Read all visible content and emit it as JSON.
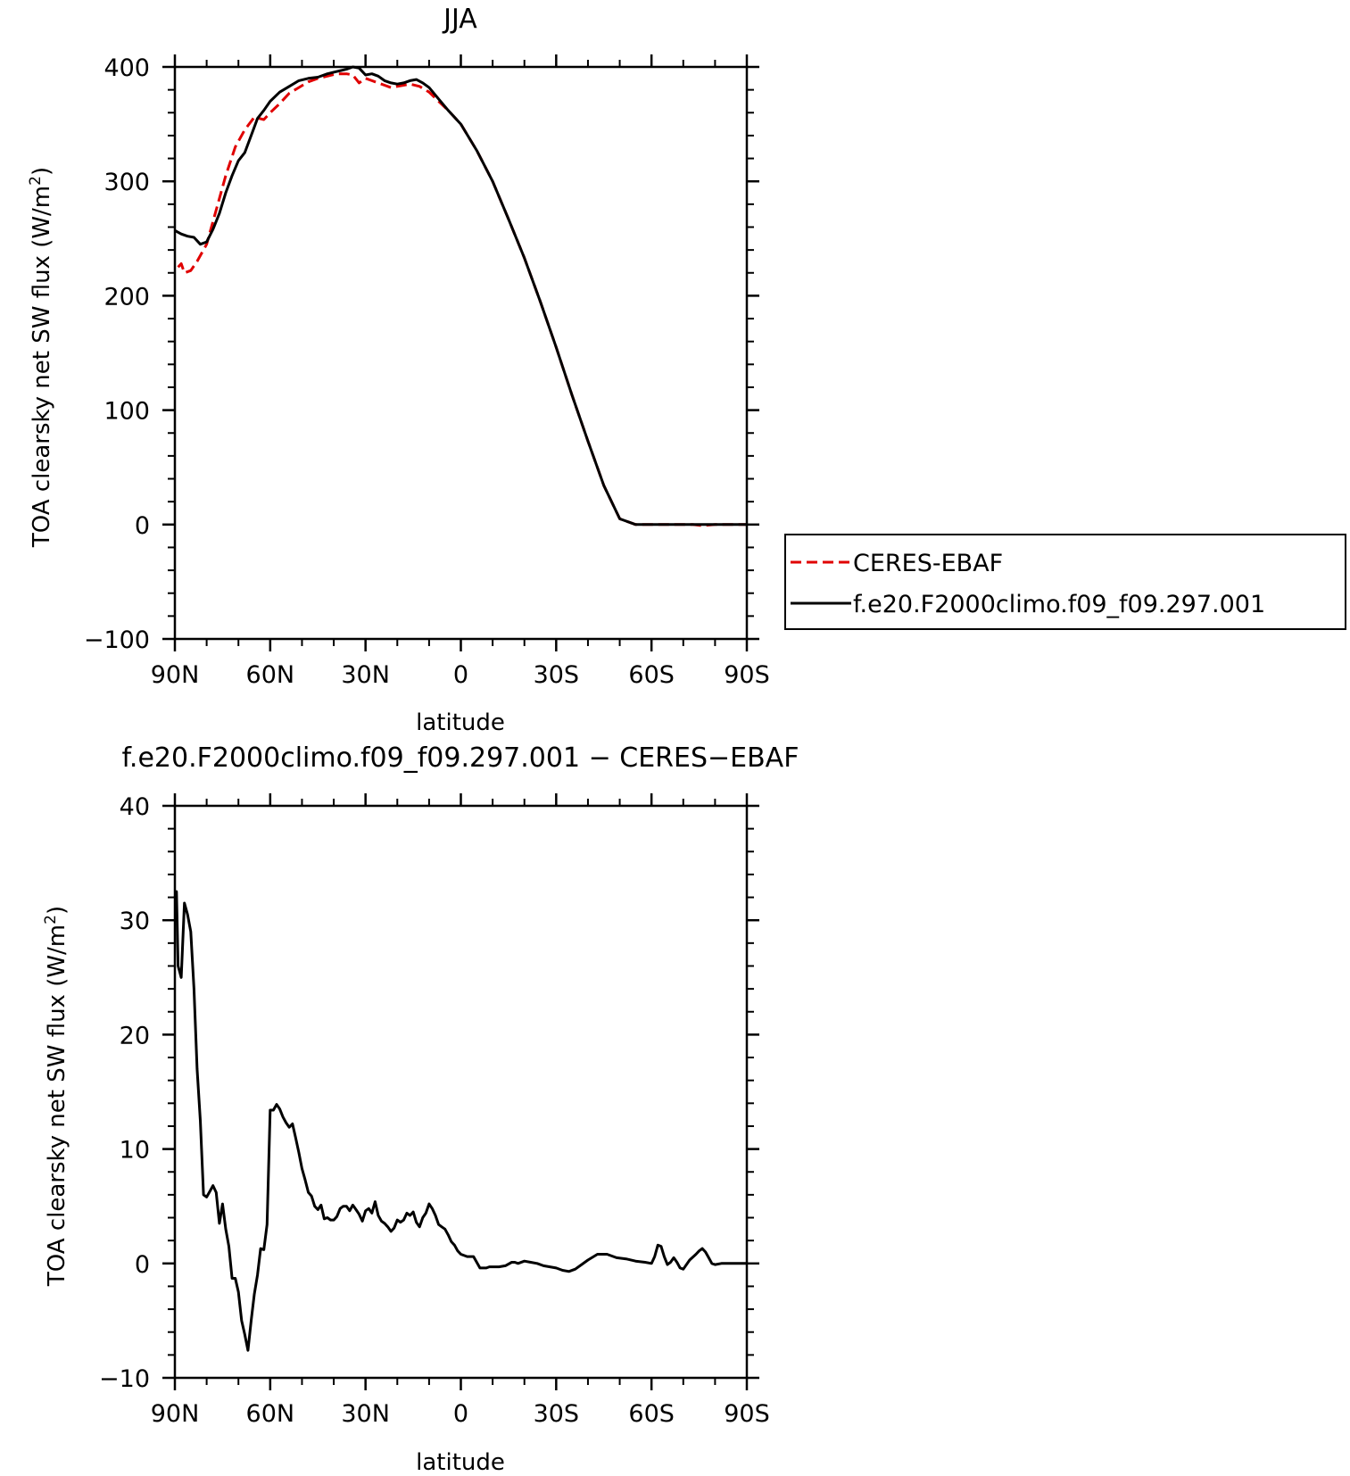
{
  "chart_data": [
    {
      "type": "line",
      "title": "JJA",
      "xlabel": "latitude",
      "ylabel": "TOA clearsky net SW flux (W/m²)",
      "ylabel_main": "TOA clearsky net SW flux (W/m",
      "ylabel_sup": "2",
      "ylabel_end": ")",
      "xlim": [
        90,
        -90
      ],
      "ylim": [
        -100,
        400
      ],
      "xticks": [
        90,
        60,
        30,
        0,
        -30,
        -60,
        -90
      ],
      "xtick_labels": [
        "90N",
        "60N",
        "30N",
        "0",
        "30S",
        "60S",
        "90S"
      ],
      "yticks": [
        -100,
        0,
        100,
        200,
        300,
        400
      ],
      "ytick_labels": [
        "−100",
        "0",
        "100",
        "200",
        "300",
        "400"
      ],
      "legend_position": "right",
      "series": [
        {
          "name": "CERES-EBAF",
          "color": "#e00000",
          "style": "dashed",
          "x": [
            89,
            88,
            87,
            85,
            83,
            80,
            77,
            74,
            71,
            68,
            65,
            62,
            60,
            57,
            54,
            51,
            48,
            45,
            42,
            39,
            36,
            34,
            32,
            30,
            28,
            26,
            24,
            22,
            20,
            18,
            16,
            13,
            10,
            7,
            4,
            0,
            -5,
            -10,
            -15,
            -20,
            -25,
            -30,
            -35,
            -40,
            -45,
            -50,
            -55,
            -60,
            -62,
            -64,
            -66,
            -68,
            -70,
            -73,
            -76,
            -80,
            -85,
            -90
          ],
          "y": [
            225,
            228,
            220,
            222,
            230,
            245,
            275,
            305,
            330,
            345,
            356,
            354,
            360,
            368,
            377,
            382,
            387,
            390,
            392,
            394,
            394,
            393,
            386,
            390,
            388,
            386,
            384,
            382,
            383,
            384,
            385,
            383,
            378,
            370,
            362,
            350,
            327,
            300,
            267,
            233,
            195,
            155,
            113,
            73,
            34,
            5,
            0,
            0,
            0,
            0,
            0,
            0,
            0,
            0,
            -1,
            0,
            0,
            0
          ]
        },
        {
          "name": "f.e20.F2000climo.f09_f09.297.001",
          "color": "#000000",
          "style": "solid",
          "x": [
            90,
            88,
            86,
            84,
            82,
            80,
            78,
            76,
            74,
            72,
            70,
            68,
            66,
            64,
            62,
            60,
            57,
            54,
            51,
            48,
            45,
            42,
            39,
            36,
            34,
            32,
            30,
            28,
            26,
            24,
            22,
            20,
            18,
            16,
            14,
            12,
            10,
            7,
            4,
            0,
            -5,
            -10,
            -15,
            -20,
            -25,
            -30,
            -35,
            -40,
            -45,
            -50,
            -55,
            -60,
            -62,
            -64,
            -66,
            -68,
            -70,
            -73,
            -76,
            -80,
            -85,
            -90
          ],
          "y": [
            257,
            254,
            252,
            251,
            245,
            247,
            258,
            272,
            290,
            305,
            318,
            325,
            340,
            355,
            362,
            370,
            378,
            383,
            388,
            390,
            391,
            394,
            396,
            398,
            400,
            399,
            393,
            394,
            392,
            388,
            386,
            385,
            386,
            388,
            389,
            386,
            382,
            372,
            362,
            350,
            327,
            300,
            267,
            233,
            195,
            155,
            113,
            73,
            34,
            5,
            0,
            0,
            0,
            0,
            0,
            0,
            0,
            0,
            0,
            0,
            0,
            0
          ]
        }
      ]
    },
    {
      "type": "line",
      "title": "f.e20.F2000climo.f09_f09.297.001 − CERES−EBAF",
      "xlabel": "latitude",
      "ylabel": "TOA clearsky net SW flux (W/m²)",
      "ylabel_main": "TOA clearsky net SW flux (W/m",
      "ylabel_sup": "2",
      "ylabel_end": ")",
      "xlim": [
        90,
        -90
      ],
      "ylim": [
        -10,
        40
      ],
      "xticks": [
        90,
        60,
        30,
        0,
        -30,
        -60,
        -90
      ],
      "xtick_labels": [
        "90N",
        "60N",
        "30N",
        "0",
        "30S",
        "60S",
        "90S"
      ],
      "yticks": [
        -10,
        0,
        10,
        20,
        30,
        40
      ],
      "ytick_labels": [
        "−10",
        "0",
        "10",
        "20",
        "30",
        "40"
      ],
      "series": [
        {
          "color": "#000000",
          "style": "solid",
          "x": [
            90,
            89.5,
            89,
            88,
            87,
            86,
            85,
            84,
            83,
            82,
            81,
            80,
            79,
            78,
            77,
            76,
            75,
            74,
            73,
            72,
            71,
            70,
            69,
            68,
            67,
            66,
            65,
            64,
            63,
            62,
            61,
            60,
            59,
            58,
            57,
            56,
            55,
            54,
            53,
            52,
            51,
            50,
            49,
            48,
            47,
            46,
            45,
            44,
            43,
            42,
            41,
            40,
            39,
            38,
            37,
            36,
            35,
            34,
            33,
            32,
            31,
            30,
            29,
            28,
            27,
            26,
            25,
            24,
            23,
            22,
            21,
            20,
            19,
            18,
            17,
            16,
            15,
            14,
            13,
            12,
            11,
            10,
            9,
            8,
            7,
            6,
            5,
            4,
            3,
            2,
            1,
            0,
            -2,
            -4,
            -6,
            -8,
            -9,
            -10,
            -12,
            -14,
            -16,
            -17,
            -18,
            -20,
            -22,
            -24,
            -26,
            -28,
            -30,
            -32,
            -34,
            -36,
            -38,
            -40,
            -43,
            -46,
            -49,
            -52,
            -55,
            -58,
            -60,
            -61,
            -62,
            -63,
            -64,
            -65,
            -66,
            -67,
            -68,
            -69,
            -70,
            -72,
            -74,
            -75,
            -76,
            -77,
            -78,
            -79,
            -80,
            -82,
            -85,
            -90
          ],
          "y": [
            32,
            32.5,
            26,
            25,
            31.5,
            30.5,
            29,
            24,
            17,
            12.5,
            6,
            5.8,
            6.3,
            6.8,
            6.2,
            3.5,
            5.2,
            3,
            1.5,
            -1.3,
            -1.3,
            -2.5,
            -5,
            -6.2,
            -7.6,
            -5,
            -2.7,
            -1,
            1.3,
            1.2,
            3.4,
            13.4,
            13.4,
            13.9,
            13.5,
            12.8,
            12.3,
            11.9,
            12.2,
            11,
            9.7,
            8.3,
            7.3,
            6.2,
            5.9,
            5.0,
            4.7,
            5.1,
            3.9,
            4.0,
            3.8,
            3.8,
            4.1,
            4.8,
            5.0,
            5.0,
            4.6,
            5.1,
            4.7,
            4.3,
            3.7,
            4.6,
            4.8,
            4.4,
            5.4,
            4.2,
            3.7,
            3.5,
            3.2,
            2.8,
            3.1,
            3.8,
            3.6,
            3.8,
            4.4,
            4.2,
            4.5,
            3.6,
            3.2,
            4.0,
            4.4,
            5.2,
            4.8,
            4.2,
            3.4,
            3.2,
            3.0,
            2.5,
            1.9,
            1.6,
            1.1,
            0.8,
            0.6,
            0.6,
            -0.4,
            -0.4,
            -0.3,
            -0.3,
            -0.3,
            -0.2,
            0.1,
            0.1,
            0.0,
            0.2,
            0.1,
            0.0,
            -0.2,
            -0.3,
            -0.4,
            -0.6,
            -0.7,
            -0.5,
            -0.1,
            0.3,
            0.8,
            0.8,
            0.5,
            0.4,
            0.2,
            0.1,
            0.0,
            0.6,
            1.6,
            1.5,
            0.6,
            -0.1,
            0.1,
            0.5,
            0.1,
            -0.4,
            -0.5,
            0.3,
            0.8,
            1.1,
            1.3,
            1.0,
            0.5,
            0.0,
            -0.1,
            0.0,
            0.0,
            0.0
          ]
        }
      ]
    }
  ]
}
